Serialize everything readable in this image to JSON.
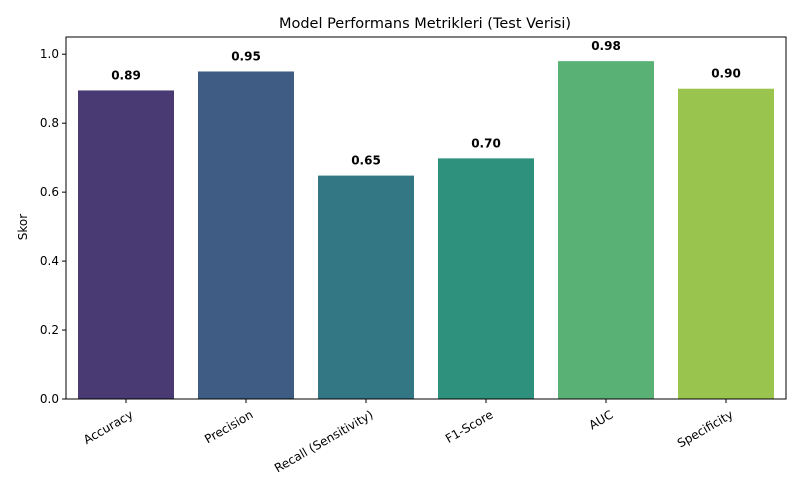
{
  "chart_data": {
    "type": "bar",
    "title": "Model Performans Metrikleri (Test Verisi)",
    "xlabel": "",
    "ylabel": "Skor",
    "ylim": [
      0,
      1.05
    ],
    "yticks": [
      0.0,
      0.2,
      0.4,
      0.6,
      0.8,
      1.0
    ],
    "ytick_labels": [
      "0.0",
      "0.2",
      "0.4",
      "0.6",
      "0.8",
      "1.0"
    ],
    "grid": false,
    "categories": [
      "Accuracy",
      "Precision",
      "Recall (Sensitivity)",
      "F1-Score",
      "AUC",
      "Specificity"
    ],
    "values": [
      0.895,
      0.95,
      0.648,
      0.698,
      0.98,
      0.9
    ],
    "value_labels": [
      "0.89",
      "0.95",
      "0.65",
      "0.70",
      "0.98",
      "0.90"
    ],
    "colors": [
      "#4a3a73",
      "#3f5d84",
      "#327783",
      "#2e917d",
      "#59b176",
      "#99c54f"
    ]
  }
}
